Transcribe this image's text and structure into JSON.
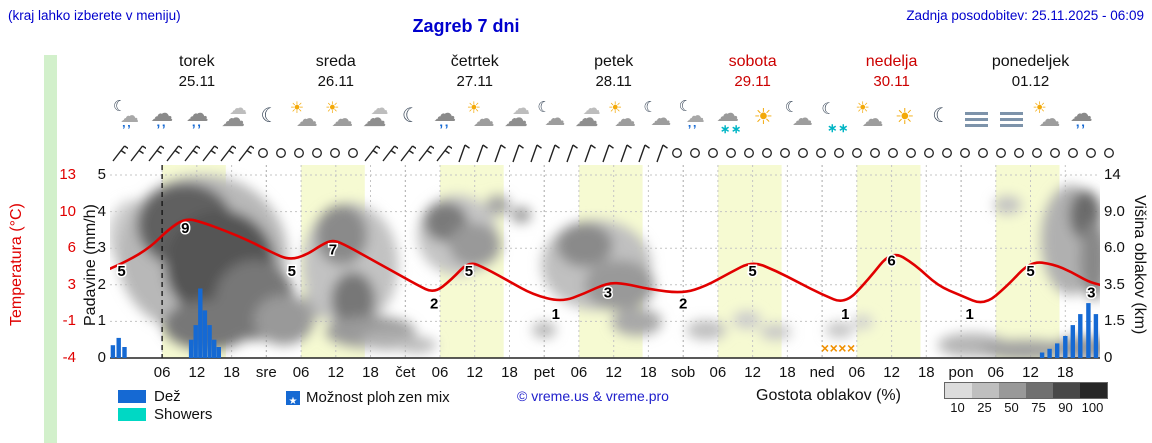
{
  "header": {
    "top_left_note": "(kraj lahko izberete v meniju)",
    "title": "Zagreb 7 dni",
    "last_update": "Zadnja posodobitev: 25.11.2025 - 06:09"
  },
  "colors": {
    "blue_text": "#0000cd",
    "temp_red": "#e10000",
    "day_red": "#cc0000",
    "day_black": "#111111",
    "rain_blue": "#1569d3",
    "showers_cyan": "#00d8c4",
    "frozen_orange": "#f09000",
    "band_yellow": "#f6fad2",
    "grid_gray": "#c4c4c4"
  },
  "days": [
    {
      "name": "torek",
      "date": "25.11",
      "color": "black"
    },
    {
      "name": "sreda",
      "date": "26.11",
      "color": "black"
    },
    {
      "name": "četrtek",
      "date": "27.11",
      "color": "black"
    },
    {
      "name": "petek",
      "date": "28.11",
      "color": "black"
    },
    {
      "name": "sobota",
      "date": "29.11",
      "color": "red"
    },
    {
      "name": "nedelja",
      "date": "30.11",
      "color": "red"
    },
    {
      "name": "ponedeljek",
      "date": "01.12",
      "color": "black"
    }
  ],
  "left_axis": {
    "temp_label": "Temperatura (°C)",
    "precip_label": "Padavine (mm/h)",
    "temp_ticks": [
      "13",
      "10",
      "6",
      "3",
      "-1",
      "-4"
    ],
    "precip_ticks": [
      "5",
      "4",
      "3",
      "2",
      "1",
      "0"
    ]
  },
  "right_axis": {
    "label": "Višina oblakov (km)",
    "ticks": [
      "14",
      "9.0",
      "6.0",
      "3.5",
      "1.5",
      "0"
    ]
  },
  "x_axis": {
    "hour_labels": [
      "06",
      "12",
      "18"
    ],
    "day_abbrs": [
      "sre",
      "čet",
      "pet",
      "sob",
      "ned",
      "pon"
    ]
  },
  "icons": [
    "moon-rain",
    "cloud-rain",
    "cloud-rain",
    "cloud",
    "moon",
    "sun-cloud",
    "sun-cloud",
    "cloud",
    "moon",
    "cloud-rain",
    "sun-cloud",
    "cloud",
    "moon-cloud",
    "cloud",
    "sun-cloud",
    "moon-cloud",
    "moon-rain",
    "cloud-snow",
    "sun",
    "moon-cloud",
    "moon-snow",
    "sun-cloud",
    "sun",
    "moon",
    "fog",
    "fog",
    "sun-cloud",
    "cloud-rain"
  ],
  "wind_segments": [
    {
      "type": "barb",
      "count": 8
    },
    {
      "type": "calm",
      "count": 6
    },
    {
      "type": "barb",
      "count": 5
    },
    {
      "type": "slash",
      "count": 12
    },
    {
      "type": "calm",
      "count": 25
    }
  ],
  "legend": {
    "rain": "Dež",
    "showers": "Showers",
    "chance": "Možnost ploh",
    "overlap_text": "zen mix",
    "copyright": "© vreme.us & vreme.pro",
    "cloud_density": "Gostota oblakov (%)",
    "density_ticks": [
      "10",
      "25",
      "50",
      "75",
      "90",
      "100"
    ],
    "density_colors": [
      "#dcdcdc",
      "#bfbfbf",
      "#999999",
      "#707070",
      "#484848",
      "#262626"
    ]
  },
  "chart_data": {
    "type": "line",
    "title": "Zagreb 7 dni meteogram",
    "x_hours_domain": [
      -3,
      168
    ],
    "hours_per_day": 24,
    "now_line_hour": 6,
    "day_band_local_hours": [
      6,
      17
    ],
    "temp_axis_c": [
      13,
      10,
      6,
      3,
      -1,
      -4
    ],
    "precip_axis_mm_h": [
      5,
      4,
      3,
      2,
      1,
      0
    ],
    "cloud_height_axis_km": [
      14,
      9.0,
      6.0,
      3.5,
      1.5,
      0
    ],
    "temperature_c": [
      [
        -3,
        4.3
      ],
      [
        0,
        5
      ],
      [
        4,
        6.3
      ],
      [
        7,
        7.9
      ],
      [
        10,
        9
      ],
      [
        13,
        8.6
      ],
      [
        17,
        7.8
      ],
      [
        21,
        6.9
      ],
      [
        25,
        5.8
      ],
      [
        28,
        5.1
      ],
      [
        31,
        5.6
      ],
      [
        33.5,
        6.5
      ],
      [
        35.5,
        7
      ],
      [
        38,
        6.4
      ],
      [
        42,
        5.2
      ],
      [
        46,
        4
      ],
      [
        50,
        2.8
      ],
      [
        53,
        2
      ],
      [
        56,
        3.3
      ],
      [
        59,
        5
      ],
      [
        62,
        4.3
      ],
      [
        66,
        3.1
      ],
      [
        70,
        1.9
      ],
      [
        75,
        1.2
      ],
      [
        79,
        2
      ],
      [
        83,
        3
      ],
      [
        86,
        2.9
      ],
      [
        90,
        2.4
      ],
      [
        96,
        2
      ],
      [
        100,
        2.7
      ],
      [
        104,
        3.9
      ],
      [
        108,
        5
      ],
      [
        112,
        4.1
      ],
      [
        116,
        3
      ],
      [
        120,
        1.9
      ],
      [
        124,
        1
      ],
      [
        128,
        3.3
      ],
      [
        132,
        6
      ],
      [
        136,
        4.7
      ],
      [
        140,
        2.7
      ],
      [
        144,
        1.8
      ],
      [
        148,
        0.9
      ],
      [
        152,
        2.7
      ],
      [
        156,
        5
      ],
      [
        160,
        4.7
      ],
      [
        163,
        4
      ],
      [
        166,
        3.1
      ],
      [
        168,
        2.8
      ]
    ],
    "temp_point_labels": [
      [
        -1,
        5
      ],
      [
        10,
        9
      ],
      [
        28.4,
        5
      ],
      [
        35.5,
        7
      ],
      [
        53,
        2
      ],
      [
        59,
        5
      ],
      [
        74,
        1
      ],
      [
        83,
        3
      ],
      [
        96,
        2
      ],
      [
        108,
        5
      ],
      [
        124,
        1
      ],
      [
        132,
        6
      ],
      [
        145.5,
        1
      ],
      [
        156,
        5
      ],
      [
        166.5,
        3
      ]
    ],
    "precip_bars_mm_h": [
      [
        -2.5,
        0.35
      ],
      [
        -1.5,
        0.55
      ],
      [
        -0.5,
        0.3
      ],
      [
        11,
        0.5
      ],
      [
        11.8,
        0.9
      ],
      [
        12.6,
        1.9
      ],
      [
        13.4,
        1.3
      ],
      [
        14.2,
        0.9
      ],
      [
        15,
        0.5
      ],
      [
        15.8,
        0.3
      ],
      [
        158,
        0.15
      ],
      [
        159.3,
        0.25
      ],
      [
        160.6,
        0.4
      ],
      [
        162,
        0.6
      ],
      [
        163.3,
        0.9
      ],
      [
        164.6,
        1.2
      ],
      [
        166,
        1.5
      ],
      [
        167.3,
        1.2
      ]
    ],
    "frozen_mix_hours": [
      120.5,
      122,
      123.5,
      125
    ],
    "cloud_ellipses_h_y_rx_ry_color": [
      [
        1,
        70,
        25,
        35,
        "#cfcfcf"
      ],
      [
        13,
        90,
        85,
        80,
        "#b8b8b8"
      ],
      [
        10,
        60,
        48,
        42,
        "#606060"
      ],
      [
        16,
        100,
        55,
        55,
        "#555555"
      ],
      [
        22,
        135,
        40,
        40,
        "#777777"
      ],
      [
        14,
        160,
        45,
        25,
        "#777777"
      ],
      [
        27,
        155,
        30,
        25,
        "#999999"
      ],
      [
        33,
        135,
        14,
        18,
        "#aaaaaa"
      ],
      [
        38.5,
        100,
        48,
        62,
        "#c2c2c2"
      ],
      [
        37,
        70,
        26,
        30,
        "#8a8a8a"
      ],
      [
        39,
        135,
        22,
        28,
        "#777777"
      ],
      [
        42,
        167,
        45,
        16,
        "#9a9a9a"
      ],
      [
        45,
        175,
        28,
        10,
        "#b0b0b0"
      ],
      [
        50,
        180,
        20,
        8,
        "#bbbbbb"
      ],
      [
        57,
        70,
        40,
        40,
        "#c5c5c5"
      ],
      [
        55,
        57,
        22,
        20,
        "#7a7a7a"
      ],
      [
        60,
        80,
        26,
        22,
        "#999999"
      ],
      [
        64,
        40,
        12,
        10,
        "#a5a5a5"
      ],
      [
        68,
        50,
        10,
        8,
        "#999999"
      ],
      [
        81,
        100,
        55,
        45,
        "#c0c0c0"
      ],
      [
        79,
        80,
        28,
        22,
        "#8a8a8a"
      ],
      [
        85,
        120,
        35,
        25,
        "#999999"
      ],
      [
        88,
        157,
        25,
        14,
        "#a8a8a8"
      ],
      [
        72,
        165,
        12,
        8,
        "#b5b5b5"
      ],
      [
        100,
        165,
        20,
        10,
        "#c0c0c0"
      ],
      [
        107,
        155,
        14,
        9,
        "#cccccc"
      ],
      [
        112,
        167,
        16,
        8,
        "#c8c8c8"
      ],
      [
        123,
        165,
        14,
        8,
        "#c4c4c4"
      ],
      [
        127,
        157,
        10,
        7,
        "#cfcfcf"
      ],
      [
        146,
        180,
        35,
        12,
        "#b5b5b5"
      ],
      [
        155,
        185,
        45,
        10,
        "#a0a0a0"
      ],
      [
        165,
        183,
        30,
        12,
        "#999999"
      ],
      [
        152,
        40,
        14,
        9,
        "#c2c2c2"
      ],
      [
        163,
        75,
        30,
        55,
        "#b0b0b0"
      ],
      [
        165.5,
        50,
        16,
        25,
        "#6a6a6a"
      ],
      [
        167,
        95,
        14,
        40,
        "#888888"
      ]
    ]
  }
}
